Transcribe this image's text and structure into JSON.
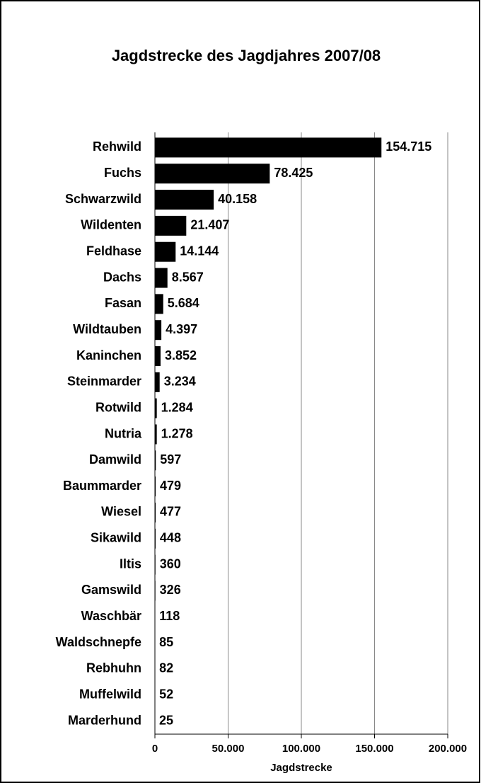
{
  "chart_data": {
    "type": "bar",
    "orientation": "horizontal",
    "title": "Jagdstrecke des Jagdjahres 2007/08",
    "x_label": "Jagdstrecke",
    "categories": [
      "Rehwild",
      "Fuchs",
      "Schwarzwild",
      "Wildenten",
      "Feldhase",
      "Dachs",
      "Fasan",
      "Wildtauben",
      "Kaninchen",
      "Steinmarder",
      "Rotwild",
      "Nutria",
      "Damwild",
      "Baummarder",
      "Wiesel",
      "Sikawild",
      "Iltis",
      "Gamswild",
      "Waschbär",
      "Waldschnepfe",
      "Rebhuhn",
      "Muffelwild",
      "Marderhund"
    ],
    "values": [
      154715,
      78425,
      40158,
      21407,
      14144,
      8567,
      5684,
      4397,
      3852,
      3234,
      1284,
      1278,
      597,
      479,
      477,
      448,
      360,
      326,
      118,
      85,
      82,
      52,
      25
    ],
    "value_labels": [
      "154.715",
      "78.425",
      "40.158",
      "21.407",
      "14.144",
      "8.567",
      "5.684",
      "4.397",
      "3.852",
      "3.234",
      "1.284",
      "1.278",
      "597",
      "479",
      "477",
      "448",
      "360",
      "326",
      "118",
      "85",
      "82",
      "52",
      "25"
    ],
    "color": "#000000",
    "xlim": [
      0,
      200000
    ],
    "xticks": [
      0,
      {
        "value": 50000,
        "label": "50.000"
      },
      {
        "value": 100000,
        "label": "100.000"
      },
      {
        "value": 150000,
        "label": "150.000"
      },
      {
        "value": 200000,
        "label": "200.000"
      }
    ],
    "grid": true
  }
}
